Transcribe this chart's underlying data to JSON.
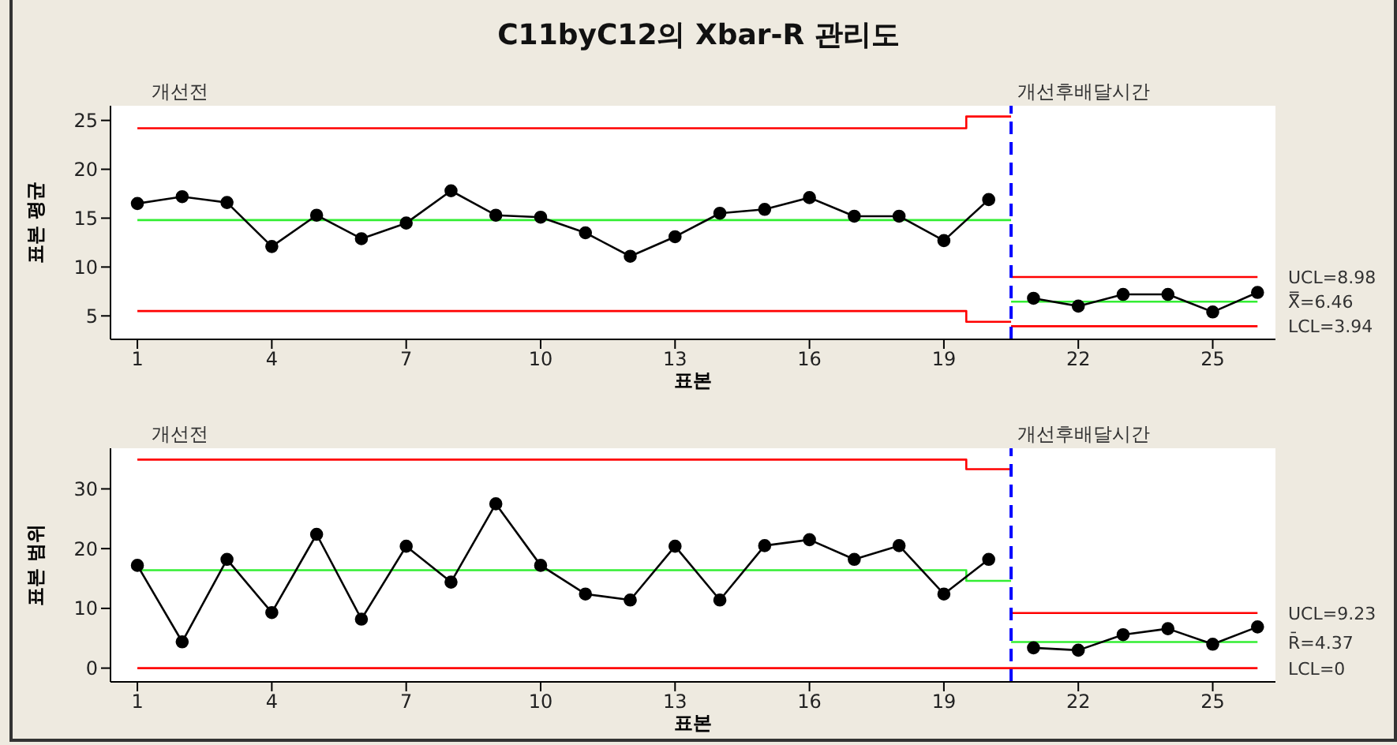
{
  "chart_data": [
    {
      "type": "line",
      "title": "C11byC12의 Xbar-R 관리도",
      "xlabel": "표본",
      "ylabel": "표본 평균",
      "xlim": [
        0.4,
        26.4
      ],
      "xticks": [
        1,
        4,
        7,
        10,
        13,
        16,
        19,
        22,
        25
      ],
      "ylim": [
        2.6,
        26.5
      ],
      "yticks": [
        5,
        10,
        15,
        20,
        25
      ],
      "grid": false,
      "legend": false,
      "marker": "circle",
      "line_style": "solid",
      "series": [
        {
          "color": "#ff0000",
          "marker": "none",
          "x": [
            1,
            19.5,
            19.5,
            20.5
          ],
          "values": [
            24.2,
            24.2,
            25.4,
            25.4
          ]
        },
        {
          "color": "#33ee33",
          "marker": "none",
          "x": [
            1,
            20.5
          ],
          "values": [
            14.8,
            14.8
          ]
        },
        {
          "color": "#ff0000",
          "marker": "none",
          "x": [
            1,
            19.5,
            19.5,
            20.5
          ],
          "values": [
            5.5,
            5.5,
            4.4,
            4.4
          ]
        },
        {
          "color": "#ff0000",
          "marker": "none",
          "x": [
            20.5,
            26
          ],
          "values": [
            8.98,
            8.98
          ]
        },
        {
          "color": "#33ee33",
          "marker": "none",
          "x": [
            20.5,
            26
          ],
          "values": [
            6.46,
            6.46
          ]
        },
        {
          "color": "#ff0000",
          "marker": "none",
          "x": [
            20.5,
            26
          ],
          "values": [
            3.94,
            3.94
          ]
        },
        {
          "color": "#000000",
          "x": [
            1,
            2,
            3,
            4,
            5,
            6,
            7,
            8,
            9,
            10,
            11,
            12,
            13,
            14,
            15,
            16,
            17,
            18,
            19,
            20
          ],
          "values": [
            16.5,
            17.2,
            16.6,
            12.1,
            15.3,
            12.9,
            14.5,
            17.8,
            15.3,
            15.1,
            13.5,
            11.1,
            13.1,
            15.5,
            15.9,
            17.1,
            15.2,
            15.2,
            12.7,
            16.9
          ]
        },
        {
          "color": "#000000",
          "x": [
            21,
            22,
            23,
            24,
            25,
            26
          ],
          "values": [
            6.8,
            6.0,
            7.2,
            7.2,
            5.4,
            7.4
          ]
        }
      ],
      "ref_lines": [
        {
          "axis": "x",
          "value": 20.5,
          "color": "#0000ff",
          "line_style": "dashed"
        }
      ],
      "annotations": [
        "개선전",
        "개선후배달시간",
        "UCL=8.98",
        "X̿=6.46",
        "LCL=3.94"
      ]
    },
    {
      "type": "line",
      "xlabel": "표본",
      "ylabel": "표본 범위",
      "xlim": [
        0.4,
        26.4
      ],
      "xticks": [
        1,
        4,
        7,
        10,
        13,
        16,
        19,
        22,
        25
      ],
      "ylim": [
        -2.3,
        36.8
      ],
      "yticks": [
        0,
        10,
        20,
        30
      ],
      "grid": false,
      "legend": false,
      "marker": "circle",
      "line_style": "solid",
      "series": [
        {
          "color": "#ff0000",
          "marker": "none",
          "x": [
            1,
            19.5,
            19.5,
            20.5
          ],
          "values": [
            34.9,
            34.9,
            33.3,
            33.3
          ]
        },
        {
          "color": "#33ee33",
          "marker": "none",
          "x": [
            1,
            19.5,
            19.5,
            20.5
          ],
          "values": [
            16.4,
            16.4,
            14.6,
            14.6
          ]
        },
        {
          "color": "#ff0000",
          "marker": "none",
          "x": [
            1,
            26
          ],
          "values": [
            0,
            0
          ]
        },
        {
          "color": "#ff0000",
          "marker": "none",
          "x": [
            20.5,
            26
          ],
          "values": [
            9.23,
            9.23
          ]
        },
        {
          "color": "#33ee33",
          "marker": "none",
          "x": [
            20.5,
            26
          ],
          "values": [
            4.37,
            4.37
          ]
        },
        {
          "color": "#000000",
          "x": [
            1,
            2,
            3,
            4,
            5,
            6,
            7,
            8,
            9,
            10,
            11,
            12,
            13,
            14,
            15,
            16,
            17,
            18,
            19,
            20
          ],
          "values": [
            17.2,
            4.4,
            18.2,
            9.3,
            22.4,
            8.2,
            20.4,
            14.4,
            27.5,
            17.2,
            12.4,
            11.4,
            20.4,
            11.4,
            20.5,
            21.5,
            18.2,
            20.5,
            12.4,
            18.2
          ]
        },
        {
          "color": "#000000",
          "x": [
            21,
            22,
            23,
            24,
            25,
            26
          ],
          "values": [
            3.4,
            3.0,
            5.6,
            6.6,
            4.0,
            6.9
          ]
        }
      ],
      "ref_lines": [
        {
          "axis": "x",
          "value": 20.5,
          "color": "#0000ff",
          "line_style": "dashed"
        }
      ],
      "annotations": [
        "개선전",
        "개선후배달시간",
        "UCL=9.23",
        "R̄=4.37",
        "LCL=0"
      ]
    }
  ]
}
